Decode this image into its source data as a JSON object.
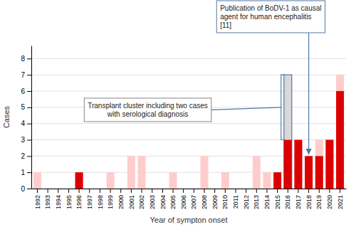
{
  "chart_data": {
    "type": "bar",
    "categories": [
      "1992",
      "1993",
      "1994",
      "1995",
      "1996",
      "1997",
      "1998",
      "1999",
      "2000",
      "2001",
      "2002",
      "2003",
      "2004",
      "2005",
      "2006",
      "2007",
      "2008",
      "2009",
      "2010",
      "2011",
      "2012",
      "2013",
      "2014",
      "2015",
      "2016",
      "2017",
      "2018",
      "2019",
      "2020",
      "2021"
    ],
    "series": [
      {
        "colors": [
          "#FFCCCC",
          "#FFCCCC",
          "#FFCCCC",
          "#FFCCCC",
          "#FFCCCC",
          "#FFCCCC",
          "#FFCCCC",
          "#FFCCCC",
          "#FFCCCC",
          "#FFCCCC",
          "#FFCCCC",
          "#FFCCCC",
          "#FFCCCC",
          "#FFCCCC",
          "#FFCCCC",
          "#FFCCCC",
          "#FFCCCC",
          "#FFCCCC",
          "#FFCCCC",
          "#FFCCCC",
          "#FFCCCC",
          "#FFCCCC",
          "#FFCCCC",
          "#FFCCCC",
          "#D8D8D8",
          "#FFCCCC",
          "#FFCCCC",
          "#FFCCCC",
          "#FFCCCC",
          "#FFCCCC"
        ],
        "values": [
          1,
          0,
          0,
          0,
          1,
          0,
          0,
          1,
          0,
          2,
          2,
          0,
          0,
          1,
          0,
          0,
          2,
          0,
          1,
          0,
          0,
          2,
          1,
          1,
          7,
          3,
          2,
          3,
          3,
          7
        ]
      },
      {
        "color": "#DD0000",
        "values": [
          0,
          0,
          0,
          0,
          1,
          0,
          0,
          0,
          0,
          0,
          0,
          0,
          0,
          0,
          0,
          0,
          0,
          0,
          0,
          0,
          0,
          0,
          0,
          1,
          3,
          3,
          2,
          2,
          3,
          6
        ]
      }
    ],
    "stacked": false,
    "xlabel": "Year of sympton onset",
    "ylabel": "Cases",
    "ylim": [
      0,
      8.8
    ],
    "yticks": [
      0,
      1,
      2,
      3,
      4,
      5,
      6,
      7,
      8
    ],
    "grid": true,
    "annotations": [
      {
        "text": "Transplant cluster including two cases\nwith serological diagnosis",
        "x": "2016"
      },
      {
        "text": "Publication of BoDV-1 as causal\nagent for human encephalitis\n[11]",
        "x": "2018"
      }
    ]
  }
}
